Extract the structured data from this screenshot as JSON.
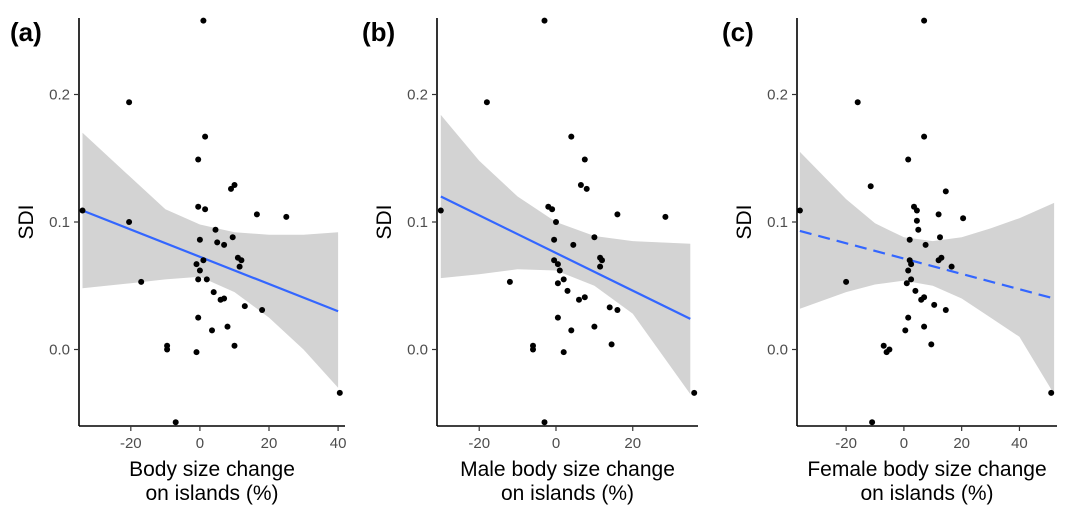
{
  "chart_data": [
    {
      "type": "scatter",
      "panel_label": "(a)",
      "xlabel_lines": [
        "Body size change",
        "on islands (%)"
      ],
      "ylabel": "SDI",
      "xlim": [
        -35,
        42
      ],
      "ylim": [
        -0.06,
        0.26
      ],
      "xticks": [
        -20,
        0,
        20,
        40
      ],
      "yticks": [
        0.0,
        0.1,
        0.2
      ],
      "ytick_labels": [
        "0.0",
        "0.1",
        "0.2"
      ],
      "fit": {
        "style": "solid",
        "x": [
          -34,
          40
        ],
        "y": [
          0.109,
          0.03
        ]
      },
      "ci_band": {
        "x": [
          -34,
          -20,
          -10,
          0,
          10,
          20,
          30,
          40
        ],
        "upper": [
          0.17,
          0.135,
          0.11,
          0.098,
          0.092,
          0.09,
          0.09,
          0.092
        ],
        "lower": [
          0.048,
          0.052,
          0.055,
          0.057,
          0.045,
          0.025,
          0.0,
          -0.03
        ]
      },
      "points": [
        [
          -34,
          0.109
        ],
        [
          -20.5,
          0.194
        ],
        [
          -20.5,
          0.1
        ],
        [
          -17,
          0.053
        ],
        [
          1,
          0.258
        ],
        [
          1.5,
          0.167
        ],
        [
          -0.5,
          0.149
        ],
        [
          -0.5,
          0.112
        ],
        [
          1.5,
          0.11
        ],
        [
          9,
          0.126
        ],
        [
          10,
          0.129
        ],
        [
          16.5,
          0.106
        ],
        [
          25,
          0.104
        ],
        [
          4.5,
          0.094
        ],
        [
          0,
          0.086
        ],
        [
          5,
          0.084
        ],
        [
          7,
          0.082
        ],
        [
          9.5,
          0.088
        ],
        [
          11,
          0.072
        ],
        [
          12,
          0.07
        ],
        [
          11.5,
          0.065
        ],
        [
          -1,
          0.067
        ],
        [
          0,
          0.062
        ],
        [
          1,
          0.07
        ],
        [
          2,
          0.055
        ],
        [
          -0.5,
          0.055
        ],
        [
          4,
          0.045
        ],
        [
          6,
          0.039
        ],
        [
          7,
          0.04
        ],
        [
          13,
          0.034
        ],
        [
          18,
          0.031
        ],
        [
          -0.5,
          0.025
        ],
        [
          3.5,
          0.015
        ],
        [
          8,
          0.018
        ],
        [
          10,
          0.003
        ],
        [
          -9.5,
          0.003
        ],
        [
          -9.5,
          0.0
        ],
        [
          -1,
          -0.002
        ],
        [
          -7,
          -0.057
        ],
        [
          40.5,
          -0.034
        ]
      ]
    },
    {
      "type": "scatter",
      "panel_label": "(b)",
      "xlabel_lines": [
        "Male body size change",
        "on islands (%)"
      ],
      "ylabel": "SDI",
      "xlim": [
        -31,
        37
      ],
      "ylim": [
        -0.06,
        0.26
      ],
      "xticks": [
        -20,
        0,
        20
      ],
      "yticks": [
        0.0,
        0.1,
        0.2
      ],
      "ytick_labels": [
        "0.0",
        "0.1",
        "0.2"
      ],
      "fit": {
        "style": "solid",
        "x": [
          -30,
          35
        ],
        "y": [
          0.12,
          0.024
        ]
      },
      "ci_band": {
        "x": [
          -30,
          -20,
          -10,
          0,
          10,
          20,
          35
        ],
        "upper": [
          0.184,
          0.148,
          0.12,
          0.1,
          0.089,
          0.085,
          0.083
        ],
        "lower": [
          0.056,
          0.059,
          0.063,
          0.062,
          0.05,
          0.028,
          -0.035
        ]
      },
      "points": [
        [
          -30,
          0.109
        ],
        [
          -18,
          0.194
        ],
        [
          -12,
          0.053
        ],
        [
          -3,
          0.258
        ],
        [
          4,
          0.167
        ],
        [
          7.5,
          0.149
        ],
        [
          -2,
          0.112
        ],
        [
          -1,
          0.11
        ],
        [
          6.5,
          0.129
        ],
        [
          8,
          0.126
        ],
        [
          16,
          0.106
        ],
        [
          28.5,
          0.104
        ],
        [
          0,
          0.1
        ],
        [
          -0.5,
          0.086
        ],
        [
          4.5,
          0.082
        ],
        [
          10,
          0.088
        ],
        [
          11.5,
          0.072
        ],
        [
          12,
          0.07
        ],
        [
          11.5,
          0.065
        ],
        [
          0.5,
          0.067
        ],
        [
          1,
          0.062
        ],
        [
          -0.5,
          0.07
        ],
        [
          2,
          0.055
        ],
        [
          0.5,
          0.052
        ],
        [
          3,
          0.046
        ],
        [
          6,
          0.039
        ],
        [
          7.5,
          0.041
        ],
        [
          14,
          0.033
        ],
        [
          16,
          0.031
        ],
        [
          0.5,
          0.025
        ],
        [
          4,
          0.015
        ],
        [
          10,
          0.018
        ],
        [
          14.5,
          0.004
        ],
        [
          -6,
          0.003
        ],
        [
          -6,
          0.0
        ],
        [
          2,
          -0.002
        ],
        [
          -3,
          -0.057
        ],
        [
          36,
          -0.034
        ]
      ]
    },
    {
      "type": "scatter",
      "panel_label": "(c)",
      "xlabel_lines": [
        "Female body size change",
        "on islands (%)"
      ],
      "ylabel": "SDI",
      "xlim": [
        -37,
        53
      ],
      "ylim": [
        -0.06,
        0.26
      ],
      "xticks": [
        -20,
        0,
        20,
        40
      ],
      "yticks": [
        0.0,
        0.1,
        0.2
      ],
      "ytick_labels": [
        "0.0",
        "0.1",
        "0.2"
      ],
      "fit": {
        "style": "dashed",
        "x": [
          -36,
          52
        ],
        "y": [
          0.093,
          0.04
        ]
      },
      "ci_band": {
        "x": [
          -36,
          -20,
          -10,
          0,
          10,
          20,
          30,
          40,
          52
        ],
        "upper": [
          0.155,
          0.118,
          0.099,
          0.088,
          0.085,
          0.088,
          0.095,
          0.103,
          0.115
        ],
        "lower": [
          0.032,
          0.045,
          0.051,
          0.054,
          0.05,
          0.04,
          0.025,
          0.01,
          -0.035
        ]
      },
      "points": [
        [
          -36,
          0.109
        ],
        [
          -16,
          0.194
        ],
        [
          -20,
          0.053
        ],
        [
          -11.5,
          0.128
        ],
        [
          7,
          0.258
        ],
        [
          7,
          0.167
        ],
        [
          1.5,
          0.149
        ],
        [
          3.5,
          0.112
        ],
        [
          4.5,
          0.109
        ],
        [
          4.5,
          0.101
        ],
        [
          5,
          0.094
        ],
        [
          12,
          0.106
        ],
        [
          14.5,
          0.124
        ],
        [
          20.5,
          0.103
        ],
        [
          2,
          0.086
        ],
        [
          7.5,
          0.082
        ],
        [
          12.5,
          0.088
        ],
        [
          13,
          0.072
        ],
        [
          12,
          0.07
        ],
        [
          16.5,
          0.065
        ],
        [
          2.5,
          0.067
        ],
        [
          1.5,
          0.062
        ],
        [
          2,
          0.07
        ],
        [
          2.5,
          0.055
        ],
        [
          1,
          0.052
        ],
        [
          4,
          0.046
        ],
        [
          6,
          0.039
        ],
        [
          7,
          0.041
        ],
        [
          14.5,
          0.031
        ],
        [
          10.5,
          0.035
        ],
        [
          1.5,
          0.025
        ],
        [
          0.5,
          0.015
        ],
        [
          7,
          0.018
        ],
        [
          9.5,
          0.004
        ],
        [
          -7,
          0.003
        ],
        [
          -5,
          0.0
        ],
        [
          -6,
          -0.002
        ],
        [
          -11,
          -0.057
        ],
        [
          51,
          -0.034
        ]
      ]
    }
  ]
}
